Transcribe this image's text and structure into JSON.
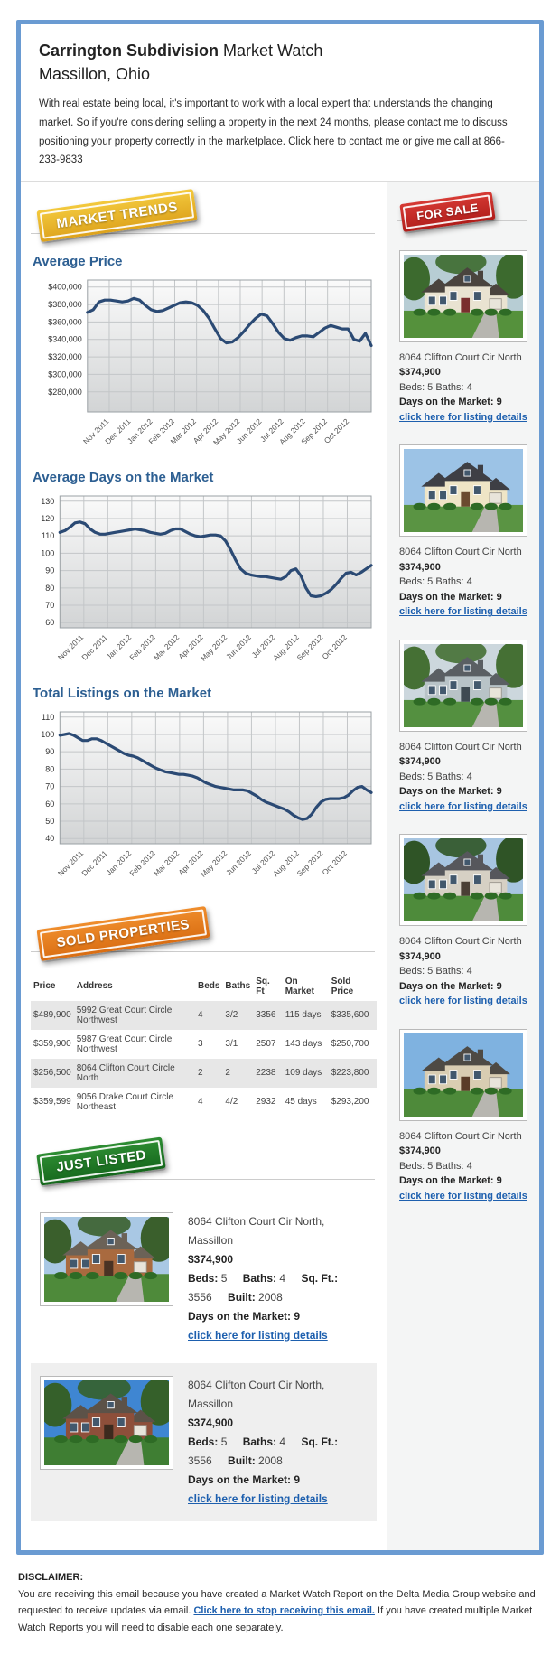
{
  "header": {
    "title_bold": "Carrington Subdivision",
    "title_rest": " Market Watch",
    "subtitle": "Massillon, Ohio",
    "intro": "With real estate being local, it's important to work with a local expert that understands the changing market. So if you're considering selling a property in the next 24 months, please contact me to discuss positioning your property correctly in the marketplace. Click here to contact me or give me call at 866-233-9833"
  },
  "badges": {
    "market_trends": "MARKET TRENDS",
    "for_sale": "FOR SALE",
    "sold_properties": "SOLD PROPERTIES",
    "just_listed": "JUST LISTED"
  },
  "colors": {
    "frame_border": "#6a9bd2",
    "heading_blue": "#2d5f92",
    "link_blue": "#1d5fae",
    "chart_line": "#2b4a74",
    "badge_yellow": "#e8b32a",
    "badge_red": "#c22a26",
    "badge_orange": "#e47d1f",
    "badge_green": "#227a28"
  },
  "chart_data": [
    {
      "type": "line",
      "title": "Average Price",
      "x_labels": [
        "Nov 2011",
        "Dec 2011",
        "Jan 2012",
        "Feb 2012",
        "Mar 2012",
        "Apr 2012",
        "May 2012",
        "Jun 2012",
        "Jul 2012",
        "Aug 2012",
        "Sep 2012",
        "Oct 2012"
      ],
      "values": [
        371000,
        374000,
        383000,
        385000,
        385000,
        384000,
        383000,
        384000,
        387000,
        385000,
        379000,
        374000,
        372000,
        373000,
        376000,
        379000,
        382000,
        383000,
        382000,
        379000,
        373000,
        364000,
        352000,
        341000,
        336000,
        337000,
        342000,
        349000,
        357000,
        364000,
        369000,
        367000,
        358000,
        348000,
        341000,
        339000,
        342000,
        344000,
        344000,
        343000,
        348000,
        353000,
        356000,
        354000,
        352000,
        352000,
        340000,
        338000,
        347000,
        333000
      ],
      "ylim": [
        257000,
        408000
      ],
      "yticks": [
        280000,
        300000,
        320000,
        340000,
        360000,
        380000,
        400000
      ],
      "ytick_labels": [
        "$280,000",
        "$300,000",
        "$320,000",
        "$340,000",
        "$360,000",
        "$380,000",
        "$400,000"
      ],
      "line_color": "#2b4a74",
      "grid": true,
      "legend": "none"
    },
    {
      "type": "line",
      "title": "Average Days on the Market",
      "x_labels": [
        "Nov 2011",
        "Dec 2011",
        "Jan 2012",
        "Feb 2012",
        "Mar 2012",
        "Apr 2012",
        "May 2012",
        "Jun 2012",
        "Jul 2012",
        "Aug 2012",
        "Sep 2012",
        "Oct 2012"
      ],
      "values": [
        112,
        113,
        115,
        117.5,
        118,
        117,
        114,
        112,
        111,
        111,
        111.5,
        112,
        112.5,
        113,
        113.5,
        114,
        113.5,
        113,
        112,
        111.5,
        111,
        111.5,
        113,
        114,
        114,
        112.5,
        111,
        110,
        109.5,
        110,
        110.5,
        110.5,
        110,
        107,
        102,
        96,
        91,
        88.5,
        87.5,
        87,
        86.5,
        86.5,
        86,
        85.5,
        85,
        86.5,
        90,
        91,
        87,
        80,
        75.5,
        75,
        75.5,
        77,
        79,
        82,
        85.5,
        88.5,
        89,
        87.5,
        89,
        91,
        93
      ],
      "ylim": [
        57,
        133
      ],
      "yticks": [
        60,
        70,
        80,
        90,
        100,
        110,
        120,
        130
      ],
      "ytick_labels": [
        "60",
        "70",
        "80",
        "90",
        "100",
        "110",
        "120",
        "130"
      ],
      "line_color": "#2b4a74",
      "grid": true,
      "legend": "none"
    },
    {
      "type": "line",
      "title": "Total Listings on the Market",
      "x_labels": [
        "Nov 2011",
        "Dec 2011",
        "Jan 2012",
        "Feb 2012",
        "Mar 2012",
        "Apr 2012",
        "May 2012",
        "Jun 2012",
        "Jul 2012",
        "Aug 2012",
        "Sep 2012",
        "Oct 2012"
      ],
      "values": [
        99.5,
        100,
        100.5,
        99.5,
        98,
        96.5,
        96.5,
        97.5,
        97.5,
        96.5,
        95,
        93.5,
        92,
        90.5,
        89,
        88,
        87.5,
        86.5,
        85,
        83.5,
        82,
        80.5,
        79.5,
        78.5,
        78,
        77.5,
        77,
        77,
        76.5,
        76,
        75,
        73.5,
        72,
        71,
        70,
        69.5,
        69,
        68.5,
        68,
        68,
        68,
        67.5,
        66,
        64.5,
        62.5,
        61,
        60,
        59,
        58,
        57,
        55.5,
        53.5,
        52,
        51,
        51.5,
        54,
        58,
        61,
        62.5,
        63,
        63,
        63,
        63.5,
        65,
        67.5,
        69.5,
        70,
        68,
        66.5
      ],
      "ylim": [
        37,
        113
      ],
      "yticks": [
        40,
        50,
        60,
        70,
        80,
        90,
        100,
        110
      ],
      "ytick_labels": [
        "40",
        "50",
        "60",
        "70",
        "80",
        "90",
        "100",
        "110"
      ],
      "line_color": "#2b4a74",
      "grid": true,
      "legend": "none"
    }
  ],
  "sidebar": {
    "listings": [
      {
        "address": "8064 Clifton Court Cir North",
        "price": "$374,900",
        "beds_baths": "Beds: 5 Baths: 4",
        "days": "Days on the Market: 9",
        "link": "click here for listing details",
        "photo": {
          "sky": "#b7cdd4",
          "tree": "#3c6a2e",
          "roof": "#4a443e",
          "wall": "#e9e3d1",
          "grass": "#55913c",
          "door": "#7a2e2e",
          "trees": true
        }
      },
      {
        "address": "8064 Clifton Court Cir North",
        "price": "$374,900",
        "beds_baths": "Beds: 5 Baths: 4",
        "days": "Days on the Market: 9",
        "link": "click here for listing details",
        "photo": {
          "sky": "#9cc3e6",
          "tree": "#49793a",
          "roof": "#3e3f45",
          "wall": "#efe5c6",
          "grass": "#5a9443",
          "door": "#6b4a2f",
          "trees": false
        }
      },
      {
        "address": "8064 Clifton Court Cir North",
        "price": "$374,900",
        "beds_baths": "Beds: 5 Baths: 4",
        "days": "Days on the Market: 9",
        "link": "click here for listing details",
        "photo": {
          "sky": "#ccd7dd",
          "tree": "#457034",
          "roof": "#5a5f63",
          "wall": "#b8c3c7",
          "grass": "#549040",
          "door": "#3e4a52",
          "trees": true
        }
      },
      {
        "address": "8064 Clifton Court Cir North",
        "price": "$374,900",
        "beds_baths": "Beds: 5 Baths: 4",
        "days": "Days on the Market: 9",
        "link": "click here for listing details",
        "photo": {
          "sky": "#a7c5e1",
          "tree": "#2f5426",
          "roof": "#56575c",
          "wall": "#d6d0c4",
          "grass": "#4e8b3b",
          "door": "#4a3f35",
          "trees": true
        }
      },
      {
        "address": "8064 Clifton Court Cir North",
        "price": "$374,900",
        "beds_baths": "Beds: 5 Baths: 4",
        "days": "Days on the Market: 9",
        "link": "click here for listing details",
        "photo": {
          "sky": "#7fb2e0",
          "tree": "#3f7030",
          "roof": "#4e4a44",
          "wall": "#d9cdb2",
          "grass": "#4e8a3a",
          "door": "#5a3c28",
          "trees": false
        }
      }
    ]
  },
  "sold_table": {
    "headers": [
      "Price",
      "Address",
      "Beds",
      "Baths",
      "Sq. Ft",
      "On Market",
      "Sold Price"
    ],
    "rows": [
      [
        "$489,900",
        "5992 Great Court Circle Northwest",
        "4",
        "3/2",
        "3356",
        "115 days",
        "$335,600"
      ],
      [
        "$359,900",
        "5987 Great Court Circle Northwest",
        "3",
        "3/1",
        "2507",
        "143 days",
        "$250,700"
      ],
      [
        "$256,500",
        "8064 Clifton Court Circle North",
        "2",
        "2",
        "2238",
        "109 days",
        "$223,800"
      ],
      [
        "$359,599",
        "9056 Drake Court Circle Northeast",
        "4",
        "4/2",
        "2932",
        "45 days",
        "$293,200"
      ]
    ],
    "shaded_rows": [
      0,
      2
    ]
  },
  "just_listed": {
    "items": [
      {
        "address": "8064 Clifton Court Cir North, Massillon",
        "price": "$374,900",
        "specs": [
          {
            "label": "Beds:",
            "value": "5"
          },
          {
            "label": "Baths:",
            "value": "4"
          },
          {
            "label": "Sq. Ft.:",
            "value": "3556"
          },
          {
            "label": "Built:",
            "value": "2008"
          }
        ],
        "days": "Days on the Market: 9",
        "link": "click here for listing details",
        "photo": {
          "sky": "#a9c8e4",
          "tree": "#3a5f2c",
          "roof": "#6b6257",
          "wall": "#a96a3f",
          "grass": "#4e8a3a",
          "door": "#4a3324",
          "trees": true
        }
      },
      {
        "address": "8064 Clifton Court Cir North, Massillon",
        "price": "$374,900",
        "specs": [
          {
            "label": "Beds:",
            "value": "5"
          },
          {
            "label": "Baths:",
            "value": "4"
          },
          {
            "label": "Sq. Ft.:",
            "value": "3556"
          },
          {
            "label": "Built:",
            "value": "2008"
          }
        ],
        "days": "Days on the Market: 9",
        "link": "click here for listing details",
        "photo": {
          "sky": "#3f86d2",
          "tree": "#35602a",
          "roof": "#5c5248",
          "wall": "#8e4f3a",
          "grass": "#3f7e33",
          "door": "#3c2a1e",
          "trees": true
        }
      }
    ]
  },
  "disclaimer": {
    "heading": "DISCLAIMER:",
    "text_before": "You are receiving this email because you have created a Market Watch Report on the Delta Media Group website and requested to receive updates via email. ",
    "link": "Click here to stop receiving this email.",
    "text_after": " If you have created multiple Market Watch Reports you will need to disable each one separately."
  }
}
